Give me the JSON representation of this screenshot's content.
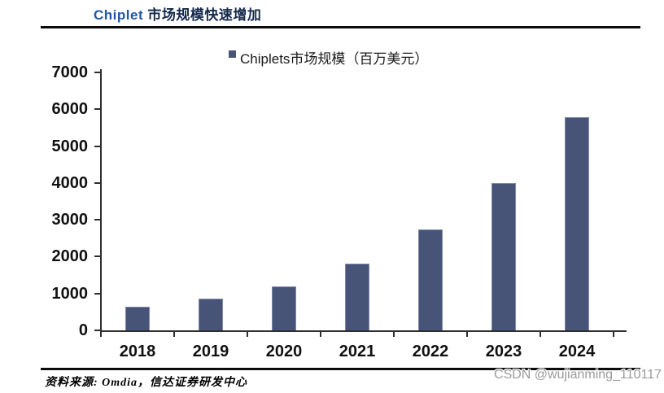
{
  "header": {
    "title_en": "Chiplet ",
    "title_zh": "市场规模快速增加"
  },
  "chart_data": {
    "type": "bar",
    "title": "Chiplet 市场规模快速增加",
    "legend": "Chiplets市场规模（百万美元）",
    "categories": [
      "2018",
      "2019",
      "2020",
      "2021",
      "2022",
      "2023",
      "2024"
    ],
    "values": [
      650,
      870,
      1200,
      1800,
      2730,
      4000,
      5780
    ],
    "xlabel": "",
    "ylabel": "",
    "unit": "百万美元",
    "ylim": [
      0,
      7000
    ],
    "ytick_step": 1000,
    "grid": false,
    "legend_position": "top-center",
    "bar_color": "#475377"
  },
  "footer": {
    "source_label": "资料来源: Omdia，信达证券研发中心",
    "watermark": "CSDN @wujianming_110117"
  },
  "colors": {
    "bar": "#475377",
    "bar_border": "#7e88aa",
    "title_blue": "#2057a6",
    "title_navy": "#14294b",
    "axis": "#2e2e2e",
    "watermark_gray": "#9a9a9a"
  }
}
